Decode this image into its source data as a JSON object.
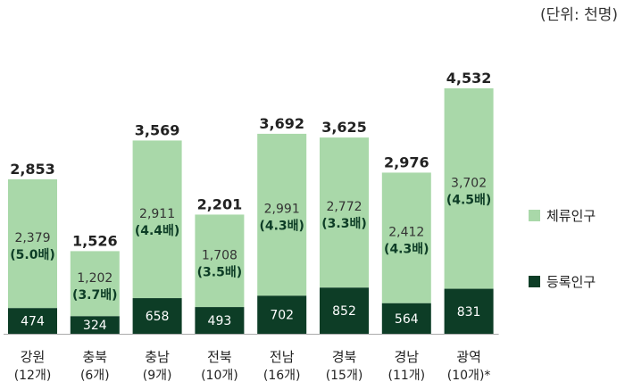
{
  "unit_label": "(단위: 천명)",
  "colors": {
    "stay": "#a9d8a9",
    "registered": "#0d3d26",
    "text_dark": "#222222",
    "ratio_text": "#0d3d26",
    "axis": "#aaaaaa"
  },
  "chart_data": {
    "type": "bar",
    "stacked": true,
    "categories": [
      "강원",
      "충북",
      "충남",
      "전북",
      "전남",
      "경북",
      "경남",
      "광역"
    ],
    "category_counts": [
      "(12개)",
      "(6개)",
      "(9개)",
      "(10개)",
      "(16개)",
      "(15개)",
      "(11개)",
      "(10개)*"
    ],
    "series": [
      {
        "name": "등록인구",
        "values": [
          474,
          324,
          658,
          493,
          702,
          852,
          564,
          831
        ]
      },
      {
        "name": "체류인구",
        "values": [
          2379,
          1202,
          2911,
          1708,
          2991,
          2772,
          2412,
          3702
        ]
      }
    ],
    "stay_value_labels": [
      "2,379",
      "1,202",
      "2,911",
      "1,708",
      "2,991",
      "2,772",
      "2,412",
      "3,702"
    ],
    "registered_value_labels": [
      "474",
      "324",
      "658",
      "493",
      "702",
      "852",
      "564",
      "831"
    ],
    "totals": [
      2853,
      1526,
      3569,
      2201,
      3692,
      3625,
      2976,
      4532
    ],
    "total_labels": [
      "2,853",
      "1,526",
      "3,569",
      "2,201",
      "3,692",
      "3,625",
      "2,976",
      "4,532"
    ],
    "ratios": [
      "(5.0배)",
      "(3.7배)",
      "(4.4배)",
      "(3.5배)",
      "(4.3배)",
      "(3.3배)",
      "(4.3배)",
      "(4.5배)"
    ],
    "legend": [
      {
        "label": "체류인구",
        "color_key": "stay"
      },
      {
        "label": "등록인구",
        "color_key": "registered"
      }
    ],
    "legend_position": "right",
    "ylim": [
      0,
      4532
    ],
    "grid": false
  }
}
